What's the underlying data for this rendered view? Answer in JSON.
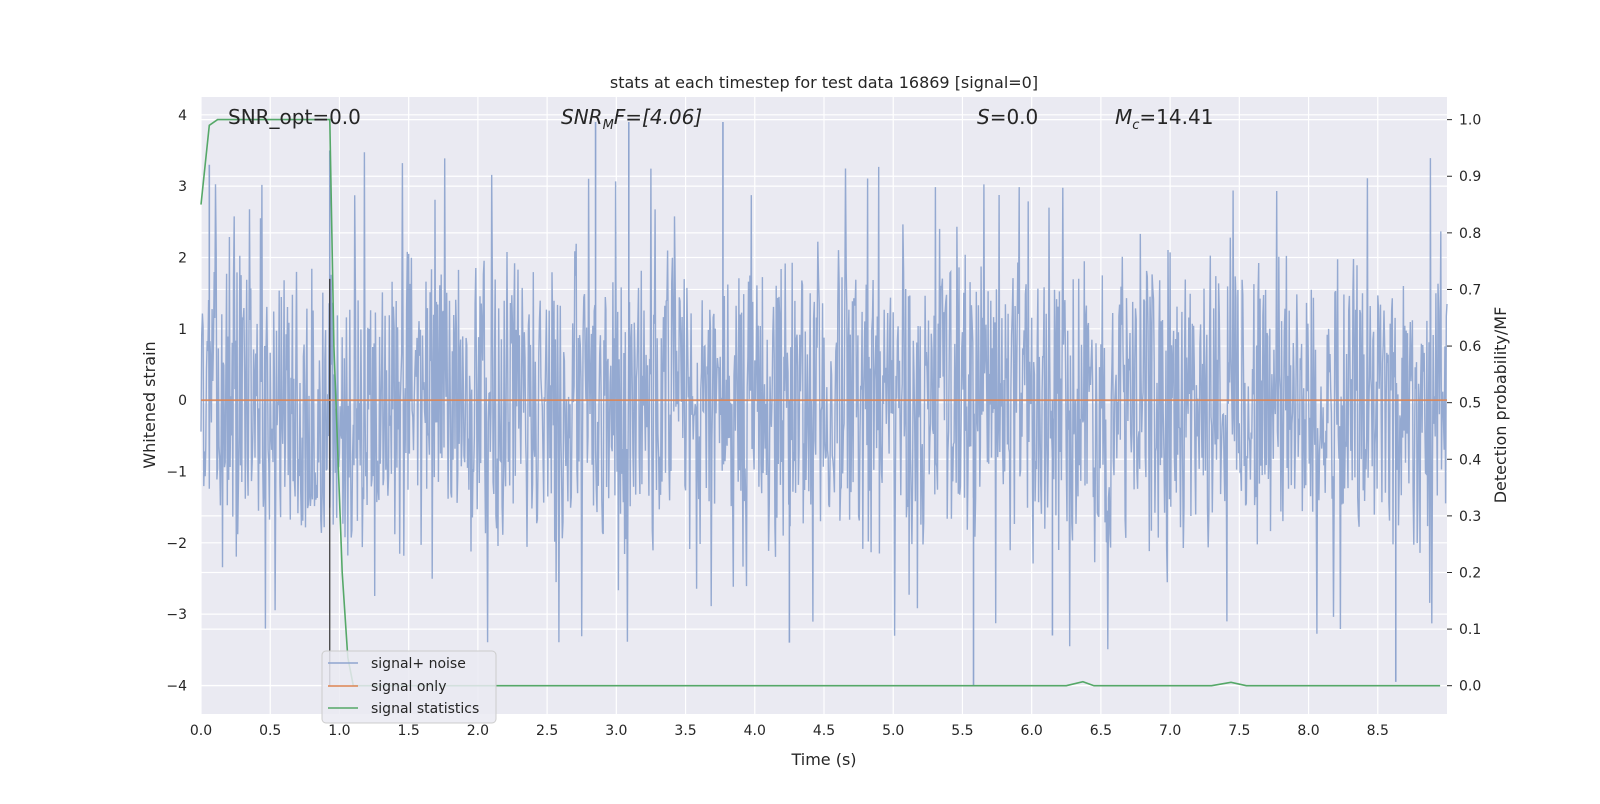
{
  "chart_data": {
    "type": "line",
    "title": "stats at each timestep for test data 16869 [signal=0]",
    "xlabel": "Time (s)",
    "ylabel": "Whitened strain",
    "y2label": "Detection probability/MF",
    "xlim": [
      0.0,
      9.0
    ],
    "ylim": [
      -4.4,
      4.25
    ],
    "y2lim": [
      -0.05,
      1.04
    ],
    "x_ticks": [
      "0.0",
      "0.5",
      "1.0",
      "1.5",
      "2.0",
      "2.5",
      "3.0",
      "3.5",
      "4.0",
      "4.5",
      "5.0",
      "5.5",
      "6.0",
      "6.5",
      "7.0",
      "7.5",
      "8.0",
      "8.5"
    ],
    "y_ticks": [
      "4",
      "3",
      "2",
      "1",
      "0",
      "−1",
      "−2",
      "−3",
      "−4"
    ],
    "y2_ticks": [
      "1.0",
      "0.9",
      "0.8",
      "0.7",
      "0.6",
      "0.5",
      "0.4",
      "0.3",
      "0.2",
      "0.1",
      "0.0"
    ],
    "grid": true,
    "legend_position": "lower-left",
    "annotations": {
      "snr_opt": "SNR_opt=0.0",
      "snr_mf_base": "SNR",
      "snr_mf_sub": "M",
      "snr_mf_rest": "F=[4.06]",
      "s_italic": "S",
      "s_rest": "=0.0",
      "mc_base": "M",
      "mc_sub": "c",
      "mc_rest": "=14.41"
    },
    "colors": {
      "noise": "#8fa5cf",
      "signal_only": "#dd8452",
      "statistics": "#55a868",
      "marker": "#333333",
      "background": "#eaeaf2"
    },
    "series": [
      {
        "name": "signal+ noise",
        "description_of_values": "dense whitened strain noise, approx within ±2.5 with spikes to ~3.9 and down to ~-4.0",
        "envelope_upper": 2.4,
        "envelope_lower": -2.4,
        "spikes_x": [
          0.06,
          0.93,
          2.85,
          3.09,
          3.77,
          4.25,
          5.58,
          6.15,
          8.63
        ],
        "spikes_y": [
          3.3,
          3.5,
          3.9,
          3.9,
          3.9,
          -3.4,
          -4.0,
          -3.3,
          -3.95
        ]
      },
      {
        "name": "signal only",
        "x": [
          0.0,
          9.0
        ],
        "y": [
          0.0,
          0.0
        ]
      },
      {
        "name": "signal statistics",
        "axis": "right",
        "x": [
          0.0,
          0.06,
          0.12,
          0.5,
          0.93,
          0.96,
          1.02,
          1.06,
          1.1,
          1.2,
          2.0,
          4.0,
          6.25,
          6.37,
          6.45,
          7.3,
          7.44,
          7.55,
          8.95
        ],
        "y": [
          0.85,
          0.99,
          1.0,
          1.0,
          1.0,
          0.6,
          0.2,
          0.05,
          0.0,
          0.0,
          0.0,
          0.0,
          0.0,
          0.007,
          0.0,
          0.0,
          0.006,
          0.0,
          0.0
        ]
      }
    ],
    "vertical_marker_x": 0.93
  }
}
